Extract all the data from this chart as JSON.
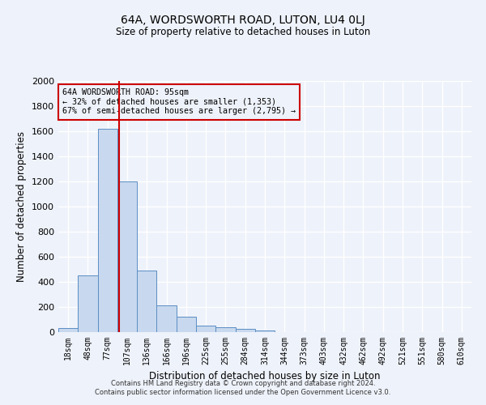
{
  "title1": "64A, WORDSWORTH ROAD, LUTON, LU4 0LJ",
  "title2": "Size of property relative to detached houses in Luton",
  "xlabel": "Distribution of detached houses by size in Luton",
  "ylabel": "Number of detached properties",
  "categories": [
    "18sqm",
    "48sqm",
    "77sqm",
    "107sqm",
    "136sqm",
    "166sqm",
    "196sqm",
    "225sqm",
    "255sqm",
    "284sqm",
    "314sqm",
    "344sqm",
    "373sqm",
    "403sqm",
    "432sqm",
    "462sqm",
    "492sqm",
    "521sqm",
    "551sqm",
    "580sqm",
    "610sqm"
  ],
  "values": [
    35,
    450,
    1620,
    1200,
    490,
    215,
    125,
    50,
    40,
    25,
    15,
    0,
    0,
    0,
    0,
    0,
    0,
    0,
    0,
    0,
    0
  ],
  "bar_color": "#c8d8ee",
  "bar_edge_color": "#5b8ec4",
  "ylim": [
    0,
    2000
  ],
  "yticks": [
    0,
    200,
    400,
    600,
    800,
    1000,
    1200,
    1400,
    1600,
    1800,
    2000
  ],
  "property_line_x": 2.6,
  "property_line_color": "#cc0000",
  "annotation_text": "64A WORDSWORTH ROAD: 95sqm\n← 32% of detached houses are smaller (1,353)\n67% of semi-detached houses are larger (2,795) →",
  "annotation_box_color": "#cc0000",
  "footer1": "Contains HM Land Registry data © Crown copyright and database right 2024.",
  "footer2": "Contains public sector information licensed under the Open Government Licence v3.0.",
  "background_color": "#eef2fa",
  "grid_color": "#ffffff"
}
